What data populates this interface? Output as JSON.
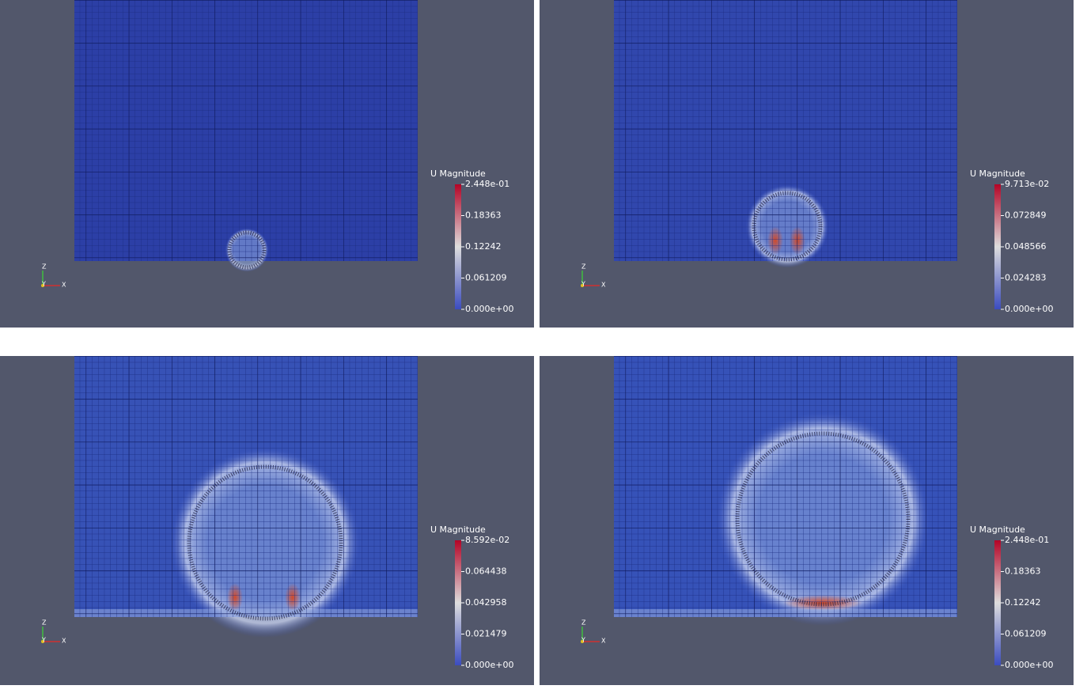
{
  "panels": [
    {
      "legend": {
        "title": "U Magnitude",
        "labels": [
          "2.448e-01",
          "0.18363",
          "0.12242",
          "0.061209",
          "0.000e+00"
        ]
      },
      "axes": {
        "z": "Z",
        "y": "Y",
        "x": "X"
      }
    },
    {
      "legend": {
        "title": "U Magnitude",
        "labels": [
          "9.713e-02",
          "0.072849",
          "0.048566",
          "0.024283",
          "0.000e+00"
        ]
      },
      "axes": {
        "z": "Z",
        "y": "Y",
        "x": "X"
      }
    },
    {
      "legend": {
        "title": "U Magnitude",
        "labels": [
          "8.592e-02",
          "0.064438",
          "0.042958",
          "0.021479",
          "0.000e+00"
        ]
      },
      "axes": {
        "z": "Z",
        "y": "Y",
        "x": "X"
      }
    },
    {
      "legend": {
        "title": "U Magnitude",
        "labels": [
          "2.448e-01",
          "0.18363",
          "0.12242",
          "0.061209",
          "0.000e+00"
        ]
      },
      "axes": {
        "z": "Z",
        "y": "Y",
        "x": "X"
      }
    }
  ]
}
